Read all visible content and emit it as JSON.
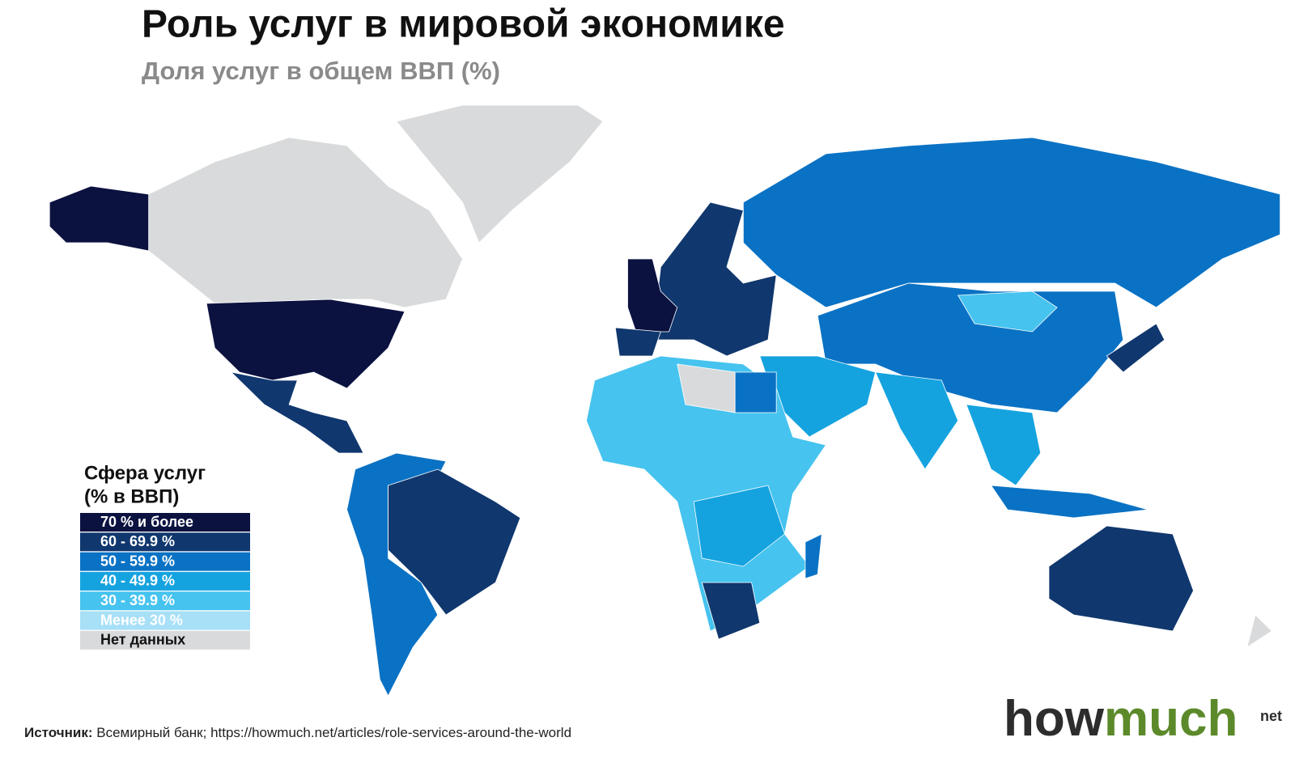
{
  "header": {
    "title": "Роль услуг в мировой экономике",
    "subtitle": "Доля услуг в общем ВВП (%)"
  },
  "legend": {
    "title_line1": "Сфера услуг",
    "title_line2": "(% в ВВП)",
    "items": [
      {
        "label": "70 % и более",
        "color": "#0b1240"
      },
      {
        "label": "60 - 69.9 %",
        "color": "#10376e"
      },
      {
        "label": "50 - 59.9 %",
        "color": "#0a72c4"
      },
      {
        "label": "40 - 49.9 %",
        "color": "#15a3e0"
      },
      {
        "label": "30 - 39.9 %",
        "color": "#46c3ef"
      },
      {
        "label": "Менее 30 %",
        "color": "#a7e0f7"
      },
      {
        "label": "Нет данных",
        "color": "#d9dadb"
      }
    ]
  },
  "source": {
    "prefix": "Источник:",
    "text": "Всемирный банк; https://howmuch.net/articles/role-services-around-the-world"
  },
  "logo": {
    "how": "how",
    "much": "much",
    "net": "net"
  }
}
